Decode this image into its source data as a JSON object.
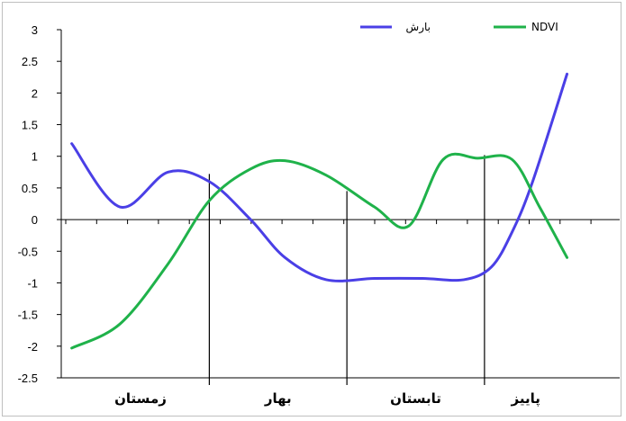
{
  "chart_data": {
    "type": "line",
    "title": "",
    "xlabel": "",
    "ylabel": "",
    "ylim": [
      -2.5,
      3
    ],
    "yticks": [
      "3",
      "2.5",
      "2",
      "1.5",
      "1",
      "0.5",
      "0",
      "-0.5",
      "-1",
      "-1.5",
      "-2",
      "-2.5"
    ],
    "grid": false,
    "legend_position": "top",
    "categories": [
      "زمستان",
      "بهار",
      "تابستان",
      "پاییز"
    ],
    "series": [
      {
        "name": "بارش",
        "color": "#4a3fe6",
        "x": [
          0,
          0.35,
          0.7,
          1.0,
          1.3,
          1.55,
          1.85,
          2.2,
          2.55,
          2.85,
          3.05,
          3.2,
          3.35,
          3.6
        ],
        "values": [
          1.2,
          0.2,
          0.75,
          0.6,
          0.0,
          -0.6,
          -0.95,
          -0.93,
          -0.93,
          -0.95,
          -0.75,
          -0.2,
          0.6,
          2.3
        ]
      },
      {
        "name": "NDVI",
        "color": "#1fb24a",
        "x": [
          0,
          0.35,
          0.7,
          1.0,
          1.3,
          1.55,
          1.85,
          2.2,
          2.45,
          2.7,
          2.95,
          3.2,
          3.4,
          3.6
        ],
        "values": [
          -2.03,
          -1.65,
          -0.7,
          0.3,
          0.8,
          0.93,
          0.7,
          0.2,
          -0.1,
          0.95,
          0.97,
          0.95,
          0.2,
          -0.6
        ]
      }
    ],
    "season_dividers": [
      1.0,
      2.0,
      3.0
    ]
  }
}
